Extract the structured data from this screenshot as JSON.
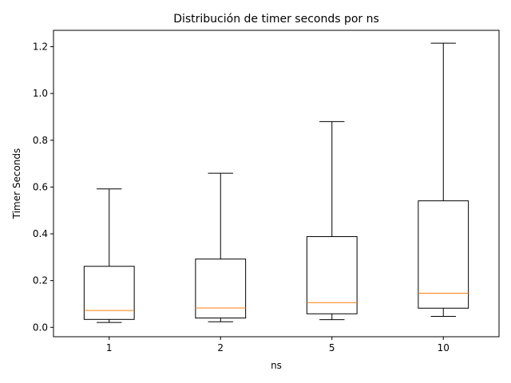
{
  "chart_data": {
    "type": "box",
    "title": "Distribución de timer seconds por ns",
    "xlabel": "ns",
    "ylabel": "Timer Seconds",
    "categories": [
      "1",
      "2",
      "5",
      "10"
    ],
    "boxes": [
      {
        "whisker_low": 0.021,
        "q1": 0.034,
        "median": 0.072,
        "q3": 0.261,
        "whisker_high": 0.592
      },
      {
        "whisker_low": 0.024,
        "q1": 0.04,
        "median": 0.083,
        "q3": 0.292,
        "whisker_high": 0.659
      },
      {
        "whisker_low": 0.033,
        "q1": 0.058,
        "median": 0.106,
        "q3": 0.388,
        "whisker_high": 0.88
      },
      {
        "whisker_low": 0.047,
        "q1": 0.082,
        "median": 0.146,
        "q3": 0.541,
        "whisker_high": 1.215
      }
    ],
    "ylim": [
      -0.04,
      1.27
    ],
    "yticks": [
      0.0,
      0.2,
      0.4,
      0.6,
      0.8,
      1.0,
      1.2
    ],
    "ytick_labels": [
      "0.0",
      "0.2",
      "0.4",
      "0.6",
      "0.8",
      "1.0",
      "1.2"
    ],
    "grid": false,
    "colors": {
      "box": "#000000",
      "median": "#ff7f0e"
    }
  }
}
